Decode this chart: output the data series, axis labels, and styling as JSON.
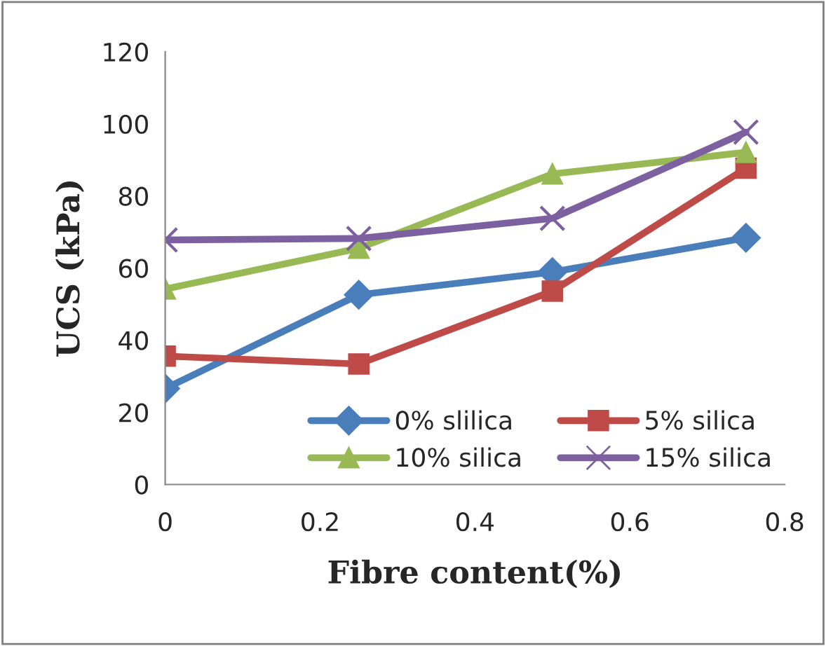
{
  "chart_data": {
    "type": "line",
    "xlabel": "Fibre content(%)",
    "ylabel": "UCS (kPa)",
    "x": [
      0,
      0.25,
      0.5,
      0.75
    ],
    "xlim": [
      0,
      0.8
    ],
    "xticks": [
      0,
      0.2,
      0.4,
      0.6,
      0.8
    ],
    "ylim": [
      0,
      120
    ],
    "yticks": [
      0,
      20,
      40,
      60,
      80,
      100,
      120
    ],
    "grid": false,
    "legend": "bottom right",
    "series": [
      {
        "name": "0% slilica",
        "color": "#4a7ebb",
        "marker": "diamond",
        "values": [
          26.6,
          52.6,
          58.9,
          68.4
        ]
      },
      {
        "name": "5% silica",
        "color": "#be4b48",
        "marker": "square",
        "values": [
          35.6,
          33.4,
          53.6,
          87.7
        ]
      },
      {
        "name": "10% silica",
        "color": "#98b954",
        "marker": "triangle",
        "values": [
          54.2,
          65.5,
          86.1,
          92.1
        ]
      },
      {
        "name": "15% silica",
        "color": "#7d60a0",
        "marker": "cross",
        "values": [
          67.8,
          68.2,
          73.8,
          97.7
        ]
      }
    ]
  }
}
